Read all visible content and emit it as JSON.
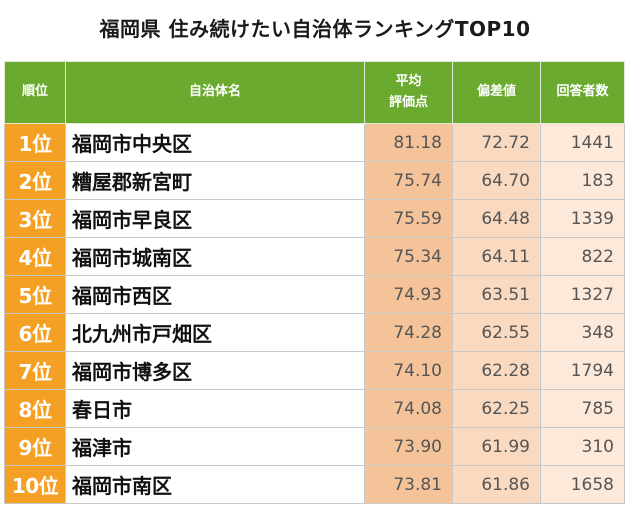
{
  "title": "福岡県 住み続けたい自治体ランキングTOP10",
  "headers": {
    "rank": "順位",
    "name": "自治体名",
    "avg_line1": "平均",
    "avg_line2": "評価点",
    "dev": "偏差値",
    "cnt": "回答者数"
  },
  "rows": [
    {
      "rank": "1位",
      "name": "福岡市中央区",
      "avg": "81.18",
      "dev": "72.72",
      "cnt": "1441"
    },
    {
      "rank": "2位",
      "name": "糟屋郡新宮町",
      "avg": "75.74",
      "dev": "64.70",
      "cnt": "183"
    },
    {
      "rank": "3位",
      "name": "福岡市早良区",
      "avg": "75.59",
      "dev": "64.48",
      "cnt": "1339"
    },
    {
      "rank": "4位",
      "name": "福岡市城南区",
      "avg": "75.34",
      "dev": "64.11",
      "cnt": "822"
    },
    {
      "rank": "5位",
      "name": "福岡市西区",
      "avg": "74.93",
      "dev": "63.51",
      "cnt": "1327"
    },
    {
      "rank": "6位",
      "name": "北九州市戸畑区",
      "avg": "74.28",
      "dev": "62.55",
      "cnt": "348"
    },
    {
      "rank": "7位",
      "name": "福岡市博多区",
      "avg": "74.10",
      "dev": "62.28",
      "cnt": "1794"
    },
    {
      "rank": "8位",
      "name": "春日市",
      "avg": "74.08",
      "dev": "62.25",
      "cnt": "785"
    },
    {
      "rank": "9位",
      "name": "福津市",
      "avg": "73.90",
      "dev": "61.99",
      "cnt": "310"
    },
    {
      "rank": "10位",
      "name": "福岡市南区",
      "avg": "73.81",
      "dev": "61.86",
      "cnt": "1658"
    }
  ],
  "colors": {
    "header_green": "#6aaa2e",
    "rank_orange": "#f3a025",
    "avg_fill": "#f5c39a",
    "dev_fill": "#f9dac1",
    "cnt_fill": "#fde9d9"
  }
}
